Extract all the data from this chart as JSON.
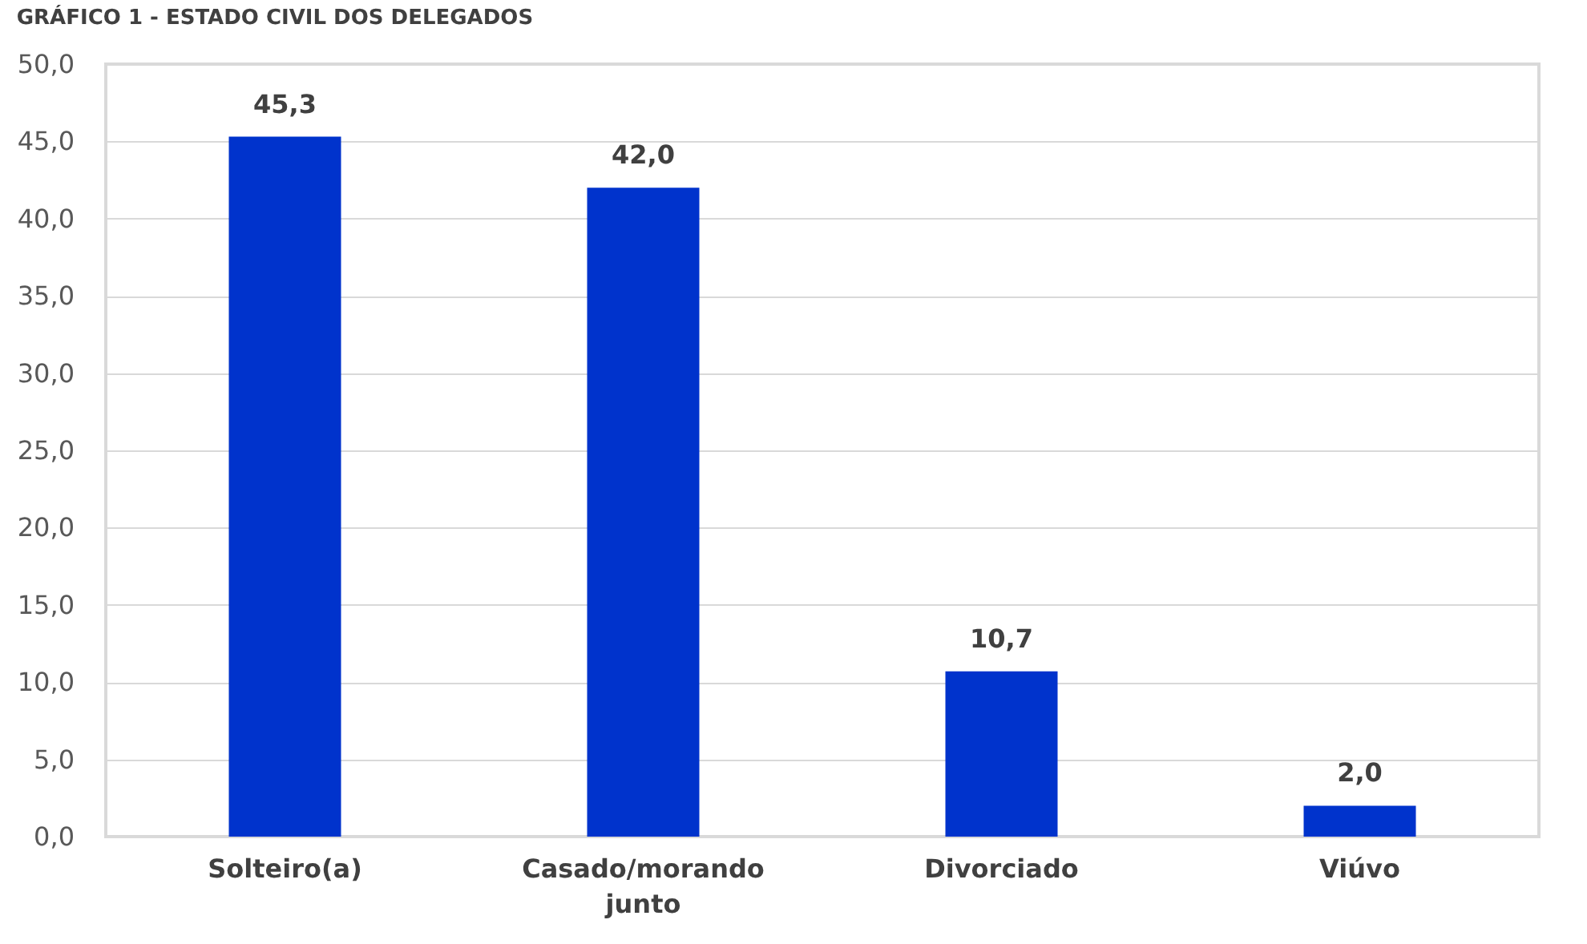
{
  "chart_data": {
    "type": "bar",
    "title": "GRÁFICO 1 - ESTADO CIVIL DOS DELEGADOS",
    "categories": [
      "Solteiro(a)",
      "Casado/morando junto",
      "Divorciado",
      "Viúvo"
    ],
    "values": [
      45.3,
      42.0,
      10.7,
      2.0
    ],
    "value_labels": [
      "45,3",
      "42,0",
      "10,7",
      "2,0"
    ],
    "color": "#0033cc",
    "ylim": [
      0,
      50
    ],
    "yticks": [
      {
        "value": 0,
        "label": "0,0"
      },
      {
        "value": 5,
        "label": "5,0"
      },
      {
        "value": 10,
        "label": "10,0"
      },
      {
        "value": 15,
        "label": "15,0"
      },
      {
        "value": 20,
        "label": "20,0"
      },
      {
        "value": 25,
        "label": "25,0"
      },
      {
        "value": 30,
        "label": "30,0"
      },
      {
        "value": 35,
        "label": "35,0"
      },
      {
        "value": 40,
        "label": "40,0"
      },
      {
        "value": 45,
        "label": "45,0"
      },
      {
        "value": 50,
        "label": "50,0"
      }
    ],
    "grid": "y"
  }
}
